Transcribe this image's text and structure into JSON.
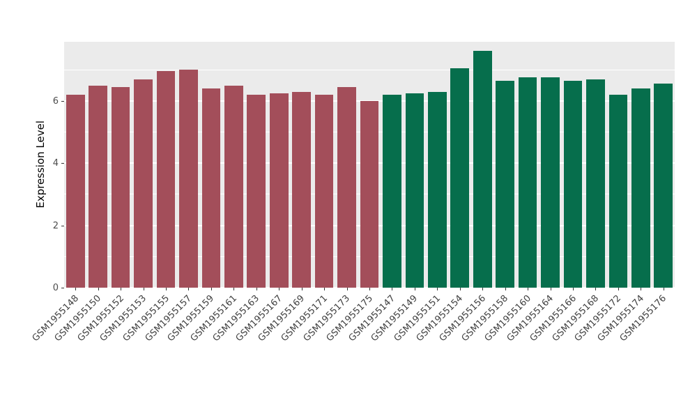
{
  "figure": {
    "background": "#FFFFFF",
    "panel_background": "#EBEBEB",
    "gridline_color": "#FFFFFF"
  },
  "chart_data": {
    "type": "bar",
    "title": "",
    "xlabel": "",
    "ylabel": "Expression Level",
    "ylim": [
      0,
      7.9
    ],
    "yticks": [
      0,
      2,
      4,
      6
    ],
    "yticks_minor": [
      1,
      3,
      5,
      7
    ],
    "grid": "on",
    "legend": "none",
    "categories": [
      "GSM1955148",
      "GSM1955150",
      "GSM1955152",
      "GSM1955153",
      "GSM1955155",
      "GSM1955157",
      "GSM1955159",
      "GSM1955161",
      "GSM1955163",
      "GSM1955167",
      "GSM1955169",
      "GSM1955171",
      "GSM1955173",
      "GSM1955175",
      "GSM1955147",
      "GSM1955149",
      "GSM1955151",
      "GSM1955154",
      "GSM1955156",
      "GSM1955158",
      "GSM1955160",
      "GSM1955164",
      "GSM1955166",
      "GSM1955168",
      "GSM1955172",
      "GSM1955174",
      "GSM1955176"
    ],
    "values": [
      6.2,
      6.5,
      6.45,
      6.7,
      6.95,
      7.0,
      6.4,
      6.5,
      6.2,
      6.25,
      6.3,
      6.2,
      6.45,
      6.0,
      6.2,
      6.25,
      6.3,
      7.05,
      7.6,
      6.65,
      6.75,
      6.75,
      6.65,
      6.7,
      6.2,
      6.4,
      6.55
    ],
    "groups": [
      "group-1",
      "group-1",
      "group-1",
      "group-1",
      "group-1",
      "group-1",
      "group-1",
      "group-1",
      "group-1",
      "group-1",
      "group-1",
      "group-1",
      "group-1",
      "group-1",
      "group-2",
      "group-2",
      "group-2",
      "group-2",
      "group-2",
      "group-2",
      "group-2",
      "group-2",
      "group-2",
      "group-2",
      "group-2",
      "group-2",
      "group-2"
    ],
    "group_colors": {
      "group-1": "#A34E5A",
      "group-2": "#066E4C"
    }
  }
}
